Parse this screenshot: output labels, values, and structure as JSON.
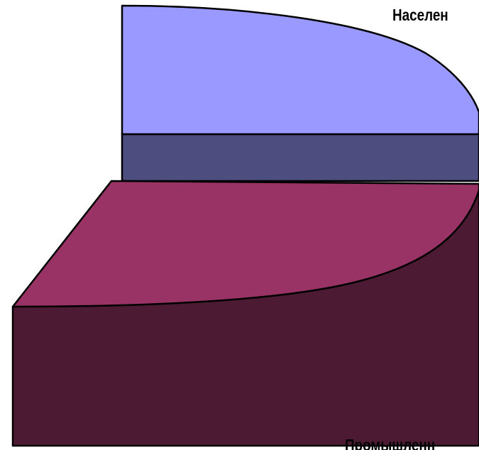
{
  "chart_data": {
    "type": "pie",
    "style": "3d",
    "categories": [
      "Населен",
      "Промышленн"
    ],
    "values": [
      25,
      75
    ],
    "colors": {
      "Населен": {
        "top": "#9999ff",
        "side": "#4d4d80"
      },
      "Промышленн": {
        "top": "#993366",
        "side": "#4d1a33"
      }
    },
    "outline_color": "#000000",
    "legend": "none"
  }
}
